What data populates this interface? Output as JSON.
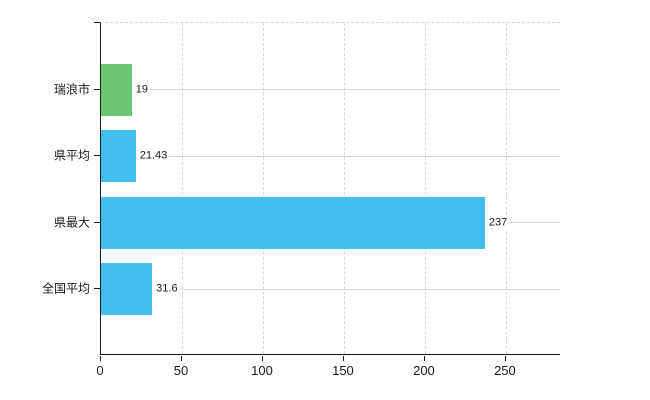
{
  "chart_data": {
    "type": "bar",
    "orientation": "horizontal",
    "title": "",
    "xlabel": "",
    "ylabel": "",
    "categories": [
      "瑞浪市",
      "県平均",
      "県最大",
      "全国平均"
    ],
    "values": [
      19,
      21.43,
      237,
      31.6
    ],
    "value_labels": [
      "19",
      "21.43",
      "237",
      "31.6"
    ],
    "bar_colors": [
      "#6bc871",
      "#41bdee",
      "#41bdee",
      "#41bdee"
    ],
    "x_ticks": [
      0,
      50,
      100,
      150,
      200,
      250
    ],
    "xlim": [
      0,
      284
    ],
    "grid": true,
    "legend": "none",
    "colors": {
      "axis": "#1a1a1a",
      "gridline": "#d9d9d9",
      "text": "#1a1a1a",
      "background": "#ffffff"
    }
  }
}
